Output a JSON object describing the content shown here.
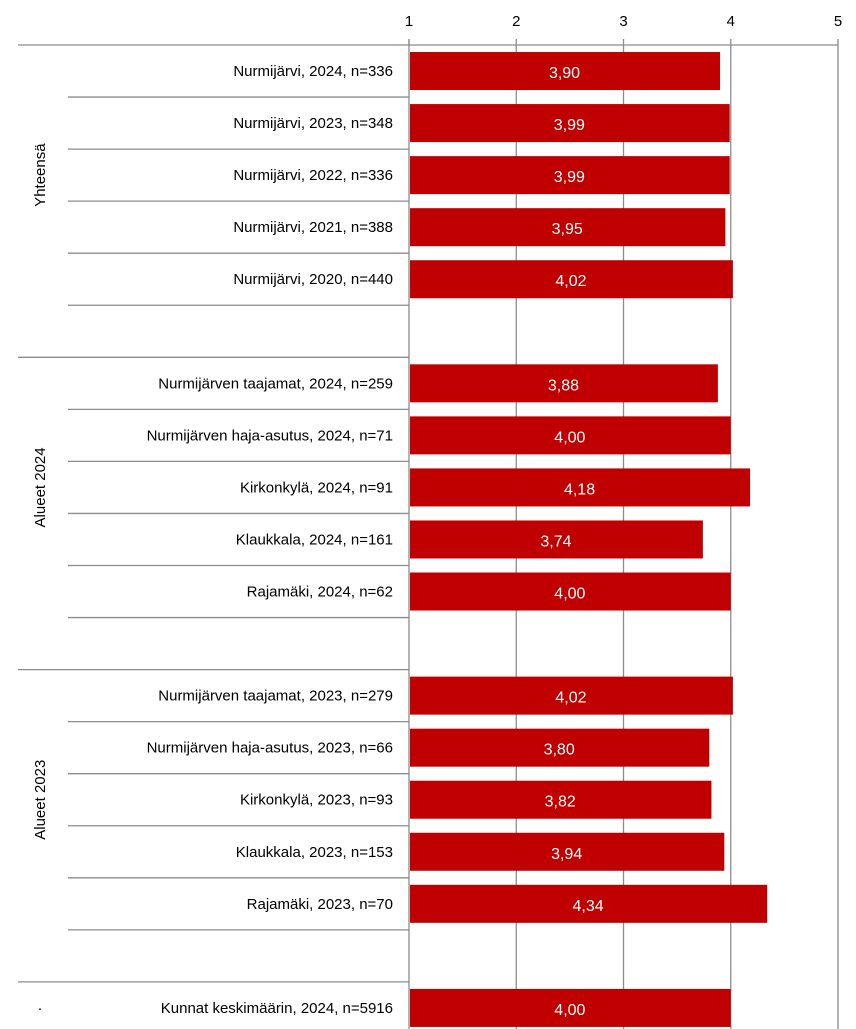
{
  "chart_data": {
    "type": "bar",
    "orientation": "horizontal",
    "title": "",
    "xlabel": "",
    "ylabel": "",
    "xlim": [
      1,
      5
    ],
    "x_ticks": [
      "1",
      "2",
      "3",
      "4",
      "5"
    ],
    "x_axis_position": "top",
    "grid": true,
    "legend": "none",
    "bar_color": "#c00000",
    "data_label_color": "#ffffff",
    "rows": [
      {
        "label": "Nurmijärvi, 2024, n=336",
        "value": 3.9,
        "value_label": "3,90"
      },
      {
        "label": "Nurmijärvi, 2023, n=348",
        "value": 3.99,
        "value_label": "3,99"
      },
      {
        "label": "Nurmijärvi, 2022, n=336",
        "value": 3.99,
        "value_label": "3,99"
      },
      {
        "label": "Nurmijärvi, 2021, n=388",
        "value": 3.95,
        "value_label": "3,95"
      },
      {
        "label": "Nurmijärvi, 2020, n=440",
        "value": 4.02,
        "value_label": "4,02"
      },
      {
        "label": "",
        "value": null,
        "value_label": ""
      },
      {
        "label": "Nurmijärven taajamat, 2024, n=259",
        "value": 3.88,
        "value_label": "3,88"
      },
      {
        "label": "Nurmijärven haja-asutus, 2024, n=71",
        "value": 4.0,
        "value_label": "4,00"
      },
      {
        "label": "Kirkonkylä, 2024, n=91",
        "value": 4.18,
        "value_label": "4,18"
      },
      {
        "label": "Klaukkala, 2024, n=161",
        "value": 3.74,
        "value_label": "3,74"
      },
      {
        "label": "Rajamäki, 2024, n=62",
        "value": 4.0,
        "value_label": "4,00"
      },
      {
        "label": "",
        "value": null,
        "value_label": ""
      },
      {
        "label": "Nurmijärven taajamat, 2023, n=279",
        "value": 4.02,
        "value_label": "4,02"
      },
      {
        "label": "Nurmijärven haja-asutus, 2023, n=66",
        "value": 3.8,
        "value_label": "3,80"
      },
      {
        "label": "Kirkonkylä, 2023, n=93",
        "value": 3.82,
        "value_label": "3,82"
      },
      {
        "label": "Klaukkala, 2023, n=153",
        "value": 3.94,
        "value_label": "3,94"
      },
      {
        "label": "Rajamäki, 2023, n=70",
        "value": 4.34,
        "value_label": "4,34"
      },
      {
        "label": "",
        "value": null,
        "value_label": ""
      },
      {
        "label": "Kunnat keskimäärin, 2024, n=5916",
        "value": 4.0,
        "value_label": "4,00"
      }
    ],
    "groups": [
      {
        "label": "Yhteensä",
        "first_row": 0,
        "last_row": 5
      },
      {
        "label": "Alueet 2024",
        "first_row": 6,
        "last_row": 11
      },
      {
        "label": "Alueet 2023",
        "first_row": 12,
        "last_row": 17
      },
      {
        "label": "·",
        "first_row": 18,
        "last_row": 18
      }
    ]
  }
}
